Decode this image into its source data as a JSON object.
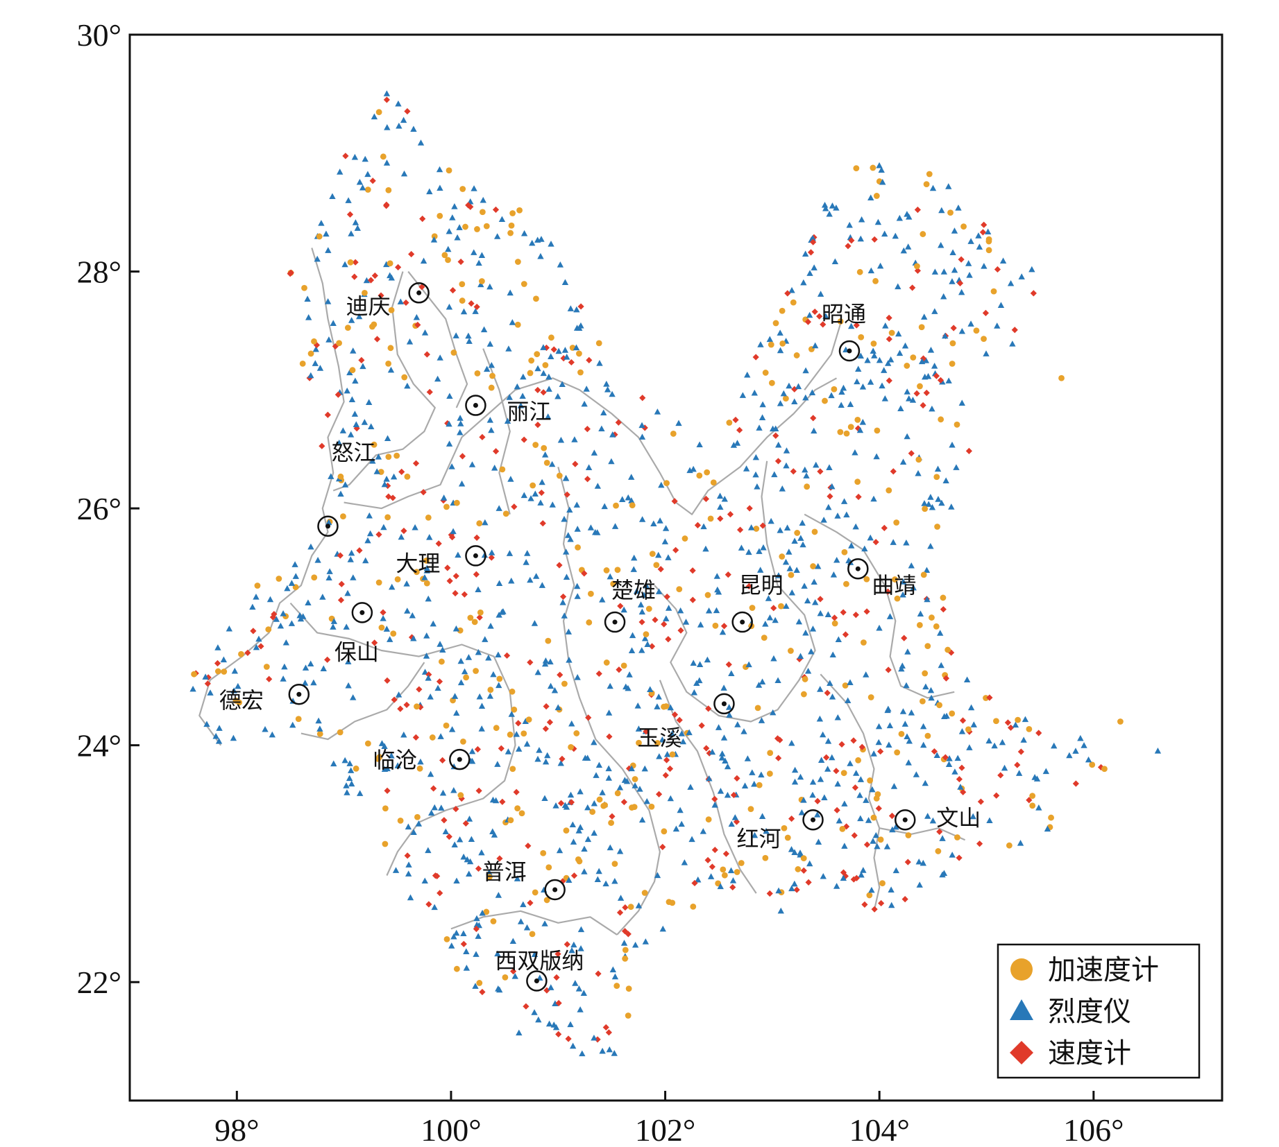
{
  "colors": {
    "accelerometer": "#e8a22b",
    "intensity_meter": "#2878b8",
    "velocimeter": "#e03a2a",
    "border": "#aaaaaa",
    "frame": "#111111"
  },
  "axes": {
    "x_ticks": [
      {
        "value": 98,
        "label": "98°"
      },
      {
        "value": 100,
        "label": "100°"
      },
      {
        "value": 102,
        "label": "102°"
      },
      {
        "value": 104,
        "label": "104°"
      },
      {
        "value": 106,
        "label": "106°"
      }
    ],
    "y_ticks": [
      {
        "value": 22,
        "label": "22°"
      },
      {
        "value": 24,
        "label": "24°"
      },
      {
        "value": 26,
        "label": "26°"
      },
      {
        "value": 28,
        "label": "28°"
      },
      {
        "value": 30,
        "label": "30°"
      }
    ],
    "xlim": [
      97,
      107.2
    ],
    "ylim": [
      21,
      30
    ]
  },
  "legend": {
    "placement": "bottom-right",
    "items": [
      {
        "label": "加速度计",
        "symbol": "circle",
        "color_key": "accelerometer"
      },
      {
        "label": "烈度仪",
        "symbol": "triangle",
        "color_key": "intensity_meter"
      },
      {
        "label": "速度计",
        "symbol": "diamond",
        "color_key": "velocimeter"
      }
    ]
  },
  "cities": [
    {
      "name": "迪庆",
      "lon": 99.7,
      "lat": 27.82
    },
    {
      "name": "丽江",
      "lon": 100.23,
      "lat": 26.87
    },
    {
      "name": "怒江",
      "lon": 98.85,
      "lat": 25.85
    },
    {
      "name": "大理",
      "lon": 100.23,
      "lat": 25.6
    },
    {
      "name": "保山",
      "lon": 99.17,
      "lat": 25.12
    },
    {
      "name": "德宏",
      "lon": 98.58,
      "lat": 24.43
    },
    {
      "name": "临沧",
      "lon": 100.08,
      "lat": 23.88
    },
    {
      "name": "普洱",
      "lon": 100.97,
      "lat": 22.78
    },
    {
      "name": "西双版纳",
      "lon": 100.8,
      "lat": 22.01
    },
    {
      "name": "楚雄",
      "lon": 101.53,
      "lat": 25.04
    },
    {
      "name": "昆明",
      "lon": 102.72,
      "lat": 25.04
    },
    {
      "name": "玉溪",
      "lon": 102.55,
      "lat": 24.35
    },
    {
      "name": "红河",
      "lon": 103.38,
      "lat": 23.37
    },
    {
      "name": "文山",
      "lon": 104.24,
      "lat": 23.37
    },
    {
      "name": "曲靖",
      "lon": 103.8,
      "lat": 25.49
    },
    {
      "name": "昭通",
      "lon": 103.72,
      "lat": 27.33
    }
  ]
}
